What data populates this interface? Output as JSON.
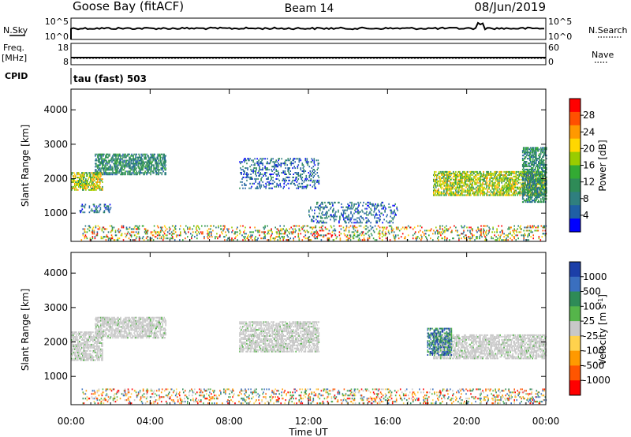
{
  "header": {
    "radar": "Goose Bay (fitACF)",
    "beam": "Beam 14",
    "date": "08/Jun/2019"
  },
  "status": {
    "nsky_label": "N.Sky",
    "nsky_ticks": [
      "10^5",
      "10^0"
    ],
    "nsearch_label": "N.Search",
    "nsearch_ticks": [
      "10^5",
      "10^0"
    ],
    "freq_label_1": "Freq.",
    "freq_label_2": "[MHz]",
    "freq_ticks": [
      "18",
      "8"
    ],
    "nave_label": "Nave",
    "nave_ticks": [
      "60",
      "0"
    ],
    "cpid_label": "CPID",
    "cpid_text": "tau (fast) 503"
  },
  "chart_data": [
    {
      "type": "heatmap",
      "name": "power",
      "ylabel": "Slant Range [km]",
      "yticks": [
        "4000",
        "3000",
        "2000",
        "1000"
      ],
      "ytick_values": [
        4000,
        3000,
        2000,
        1000
      ],
      "ylim": [
        180,
        4600
      ],
      "xlim": [
        0,
        24
      ],
      "colorbar_label": "Power [dB]",
      "colorbar_ticks": [
        "28",
        "24",
        "20",
        "16",
        "12",
        "8",
        "4"
      ],
      "colorbar_colors": [
        "#ff0000",
        "#ff5000",
        "#ff9900",
        "#ffd700",
        "#99cc00",
        "#33aa33",
        "#2e8b57",
        "#2f7f7f",
        "#1f5fa5",
        "#0000ff"
      ],
      "features": [
        {
          "t0": 0.0,
          "t1": 1.6,
          "r0": 1650,
          "r1": 2150,
          "intensity": "high"
        },
        {
          "t0": 1.2,
          "t1": 4.8,
          "r0": 2100,
          "r1": 2700,
          "intensity": "mid"
        },
        {
          "t0": 0.3,
          "t1": 2.0,
          "r0": 1000,
          "r1": 1250,
          "intensity": "low"
        },
        {
          "t0": 8.5,
          "t1": 12.5,
          "r0": 1700,
          "r1": 2600,
          "intensity": "low"
        },
        {
          "t0": 12.0,
          "t1": 16.5,
          "r0": 700,
          "r1": 1300,
          "intensity": "low"
        },
        {
          "t0": 18.3,
          "t1": 24.0,
          "r0": 1500,
          "r1": 2200,
          "intensity": "high"
        },
        {
          "t0": 22.8,
          "t1": 24.0,
          "r0": 1300,
          "r1": 2900,
          "intensity": "mid"
        },
        {
          "t0": 0.5,
          "t1": 24.0,
          "r0": 200,
          "r1": 650,
          "intensity": "mixed"
        }
      ]
    },
    {
      "type": "heatmap",
      "name": "velocity",
      "ylabel": "Slant Range [km]",
      "yticks": [
        "4000",
        "3000",
        "2000",
        "1000"
      ],
      "ytick_values": [
        4000,
        3000,
        2000,
        1000
      ],
      "ylim": [
        180,
        4600
      ],
      "xlim": [
        0,
        24
      ],
      "colorbar_label": "Velocity [m s",
      "colorbar_label_sup": "-1",
      "colorbar_label_end": "]",
      "colorbar_ticks": [
        "1000",
        "500",
        "100",
        "25",
        "-25",
        "-100",
        "-500",
        "-1000"
      ],
      "colorbar_colors": [
        "#1c3fa8",
        "#3a6fbf",
        "#2e8b57",
        "#55b54a",
        "#c8c8c8",
        "#ffd24d",
        "#ff9900",
        "#ff5500",
        "#ff0000"
      ],
      "features": [
        {
          "t0": 0.0,
          "t1": 1.6,
          "r0": 1450,
          "r1": 2300,
          "intensity": "ground"
        },
        {
          "t0": 1.2,
          "t1": 4.8,
          "r0": 2100,
          "r1": 2700,
          "intensity": "ground"
        },
        {
          "t0": 8.5,
          "t1": 12.5,
          "r0": 1700,
          "r1": 2600,
          "intensity": "ground"
        },
        {
          "t0": 18.3,
          "t1": 24.0,
          "r0": 1500,
          "r1": 2200,
          "intensity": "ground"
        },
        {
          "t0": 18.0,
          "t1": 19.2,
          "r0": 1600,
          "r1": 2400,
          "intensity": "positive"
        },
        {
          "t0": 0.5,
          "t1": 24.0,
          "r0": 200,
          "r1": 650,
          "intensity": "mixed"
        }
      ]
    }
  ],
  "xaxis": {
    "label": "Time UT",
    "ticks": [
      "00:00",
      "04:00",
      "08:00",
      "12:00",
      "16:00",
      "20:00",
      "00:00"
    ],
    "tick_hours": [
      0,
      4,
      8,
      12,
      16,
      20,
      24
    ]
  }
}
